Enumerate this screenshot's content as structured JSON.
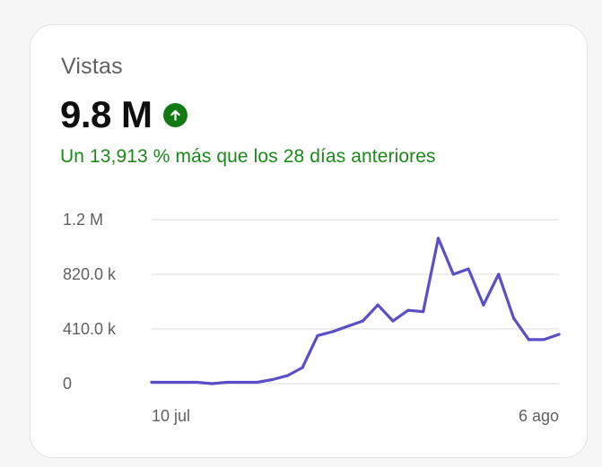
{
  "card": {
    "title": "Vistas",
    "value": "9.8 M",
    "comparison": "Un 13,913 % más que los 28 días anteriores",
    "trend_icon": "arrow-up-icon"
  },
  "colors": {
    "positive": "#1a8a1a",
    "icon_bg": "#127a12",
    "line": "#5b4fc7",
    "grid": "#e2e2e2"
  },
  "chart_data": {
    "type": "line",
    "y_tick_labels": [
      "0",
      "410.0 k",
      "820.0 k",
      "1.2 M"
    ],
    "y_ticks": [
      0,
      410000,
      820000,
      1230000
    ],
    "ylim": [
      0,
      1230000
    ],
    "x_tick_labels": [
      {
        "label": "10 jul",
        "index": 0
      },
      {
        "label": "6 ago",
        "index": 27
      }
    ],
    "grid": true,
    "series": [
      {
        "values": [
          10000,
          10000,
          10000,
          10000,
          0,
          10000,
          10000,
          10000,
          30000,
          60000,
          120000,
          360000,
          390000,
          430000,
          470000,
          590000,
          470000,
          550000,
          540000,
          1090000,
          820000,
          860000,
          590000,
          820000,
          490000,
          330000,
          330000,
          370000
        ]
      }
    ]
  }
}
